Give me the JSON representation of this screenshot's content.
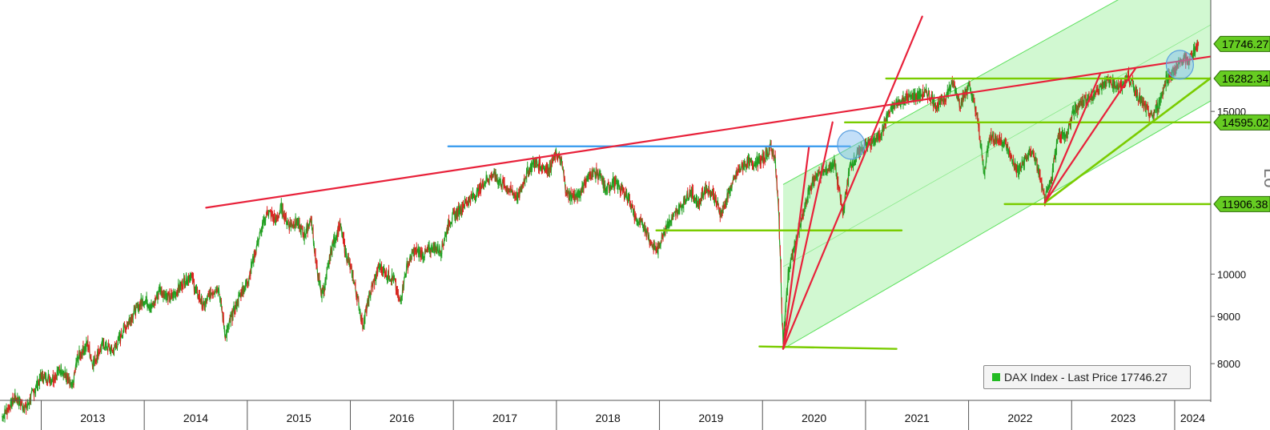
{
  "chart_data": {
    "type": "line",
    "title": "",
    "scale_label": "Lo",
    "y_scale": "log",
    "ylim": [
      7300,
      19800
    ],
    "xlim": [
      2012.6,
      2024.35
    ],
    "y_ticks": [
      {
        "value": 8000,
        "label": "8000"
      },
      {
        "value": 9000,
        "label": "9000"
      },
      {
        "value": 10000,
        "label": "10000"
      },
      {
        "value": 15000,
        "label": "15000"
      }
    ],
    "x_ticks": [
      {
        "year": 2013,
        "label": "2013"
      },
      {
        "year": 2014,
        "label": "2014"
      },
      {
        "year": 2015,
        "label": "2015"
      },
      {
        "year": 2016,
        "label": "2016"
      },
      {
        "year": 2017,
        "label": "2017"
      },
      {
        "year": 2018,
        "label": "2018"
      },
      {
        "year": 2019,
        "label": "2019"
      },
      {
        "year": 2020,
        "label": "2020"
      },
      {
        "year": 2021,
        "label": "2021"
      },
      {
        "year": 2022,
        "label": "2022"
      },
      {
        "year": 2023,
        "label": "2023"
      },
      {
        "year": 2024,
        "label": "2024"
      }
    ],
    "series": [
      {
        "name": "DAX Index - Last Price",
        "color_up": "#22a022",
        "color_down": "#e02020",
        "points": [
          [
            2012.62,
            7000
          ],
          [
            2012.75,
            7350
          ],
          [
            2012.85,
            7150
          ],
          [
            2013.0,
            7750
          ],
          [
            2013.1,
            7700
          ],
          [
            2013.2,
            7900
          ],
          [
            2013.3,
            7500
          ],
          [
            2013.35,
            8100
          ],
          [
            2013.45,
            8400
          ],
          [
            2013.5,
            8000
          ],
          [
            2013.6,
            8400
          ],
          [
            2013.7,
            8250
          ],
          [
            2013.8,
            8700
          ],
          [
            2013.9,
            9100
          ],
          [
            2014.0,
            9400
          ],
          [
            2014.08,
            9200
          ],
          [
            2014.15,
            9650
          ],
          [
            2014.25,
            9400
          ],
          [
            2014.35,
            9700
          ],
          [
            2014.45,
            10000
          ],
          [
            2014.5,
            9600
          ],
          [
            2014.58,
            9200
          ],
          [
            2014.63,
            9500
          ],
          [
            2014.72,
            9700
          ],
          [
            2014.79,
            8550
          ],
          [
            2014.85,
            9000
          ],
          [
            2014.95,
            9600
          ],
          [
            2015.0,
            9800
          ],
          [
            2015.05,
            10300
          ],
          [
            2015.12,
            11000
          ],
          [
            2015.2,
            11700
          ],
          [
            2015.28,
            11400
          ],
          [
            2015.33,
            11800
          ],
          [
            2015.4,
            11300
          ],
          [
            2015.48,
            11400
          ],
          [
            2015.55,
            11000
          ],
          [
            2015.62,
            11500
          ],
          [
            2015.67,
            10200
          ],
          [
            2015.72,
            9500
          ],
          [
            2015.76,
            9800
          ],
          [
            2015.82,
            10700
          ],
          [
            2015.9,
            11300
          ],
          [
            2015.96,
            10500
          ],
          [
            2016.02,
            10000
          ],
          [
            2016.08,
            9300
          ],
          [
            2016.12,
            8800
          ],
          [
            2016.2,
            9600
          ],
          [
            2016.28,
            10200
          ],
          [
            2016.35,
            10000
          ],
          [
            2016.42,
            9900
          ],
          [
            2016.48,
            9300
          ],
          [
            2016.55,
            10200
          ],
          [
            2016.62,
            10600
          ],
          [
            2016.72,
            10500
          ],
          [
            2016.8,
            10700
          ],
          [
            2016.88,
            10600
          ],
          [
            2016.96,
            11400
          ],
          [
            2017.05,
            11700
          ],
          [
            2017.13,
            12000
          ],
          [
            2017.22,
            12200
          ],
          [
            2017.3,
            12600
          ],
          [
            2017.38,
            12800
          ],
          [
            2017.45,
            12600
          ],
          [
            2017.55,
            12300
          ],
          [
            2017.63,
            12100
          ],
          [
            2017.7,
            12800
          ],
          [
            2017.78,
            13200
          ],
          [
            2017.85,
            13100
          ],
          [
            2017.93,
            13000
          ],
          [
            2018.0,
            13500
          ],
          [
            2018.05,
            13200
          ],
          [
            2018.1,
            12200
          ],
          [
            2018.2,
            12100
          ],
          [
            2018.28,
            12600
          ],
          [
            2018.35,
            12900
          ],
          [
            2018.42,
            12800
          ],
          [
            2018.48,
            12300
          ],
          [
            2018.55,
            12600
          ],
          [
            2018.62,
            12400
          ],
          [
            2018.7,
            12100
          ],
          [
            2018.78,
            11400
          ],
          [
            2018.85,
            11300
          ],
          [
            2018.92,
            10800
          ],
          [
            2018.98,
            10600
          ],
          [
            2019.05,
            11200
          ],
          [
            2019.13,
            11500
          ],
          [
            2019.22,
            11900
          ],
          [
            2019.3,
            12300
          ],
          [
            2019.38,
            11900
          ],
          [
            2019.45,
            12400
          ],
          [
            2019.52,
            12200
          ],
          [
            2019.6,
            11600
          ],
          [
            2019.68,
            12300
          ],
          [
            2019.76,
            12900
          ],
          [
            2019.84,
            13200
          ],
          [
            2019.92,
            13200
          ],
          [
            2020.0,
            13300
          ],
          [
            2020.08,
            13700
          ],
          [
            2020.12,
            13400
          ],
          [
            2020.16,
            11500
          ],
          [
            2020.2,
            8400
          ],
          [
            2020.25,
            10000
          ],
          [
            2020.3,
            10600
          ],
          [
            2020.38,
            11400
          ],
          [
            2020.45,
            12300
          ],
          [
            2020.52,
            12800
          ],
          [
            2020.6,
            12900
          ],
          [
            2020.7,
            13200
          ],
          [
            2020.78,
            11600
          ],
          [
            2020.85,
            13100
          ],
          [
            2020.93,
            13500
          ],
          [
            2021.0,
            13800
          ],
          [
            2021.08,
            13900
          ],
          [
            2021.15,
            14200
          ],
          [
            2021.22,
            14900
          ],
          [
            2021.3,
            15300
          ],
          [
            2021.4,
            15500
          ],
          [
            2021.5,
            15600
          ],
          [
            2021.6,
            15700
          ],
          [
            2021.7,
            15200
          ],
          [
            2021.78,
            15600
          ],
          [
            2021.85,
            16100
          ],
          [
            2021.92,
            15300
          ],
          [
            2022.0,
            16000
          ],
          [
            2022.05,
            15400
          ],
          [
            2022.1,
            14400
          ],
          [
            2022.15,
            12800
          ],
          [
            2022.2,
            14100
          ],
          [
            2022.28,
            14000
          ],
          [
            2022.35,
            13900
          ],
          [
            2022.42,
            13300
          ],
          [
            2022.48,
            12900
          ],
          [
            2022.55,
            13300
          ],
          [
            2022.62,
            13600
          ],
          [
            2022.68,
            12900
          ],
          [
            2022.74,
            12000
          ],
          [
            2022.8,
            12600
          ],
          [
            2022.87,
            14200
          ],
          [
            2022.95,
            14100
          ],
          [
            2023.02,
            15000
          ],
          [
            2023.1,
            15400
          ],
          [
            2023.18,
            15500
          ],
          [
            2023.25,
            15800
          ],
          [
            2023.32,
            16200
          ],
          [
            2023.4,
            16100
          ],
          [
            2023.48,
            15900
          ],
          [
            2023.55,
            16400
          ],
          [
            2023.62,
            15800
          ],
          [
            2023.7,
            15200
          ],
          [
            2023.78,
            14800
          ],
          [
            2023.85,
            15300
          ],
          [
            2023.92,
            16300
          ],
          [
            2024.0,
            16600
          ],
          [
            2024.08,
            17100
          ],
          [
            2024.13,
            17000
          ],
          [
            2024.18,
            17400
          ],
          [
            2024.23,
            17746.27
          ]
        ]
      }
    ],
    "price_tags": [
      {
        "value": 17746.27,
        "label": "17746.27"
      },
      {
        "value": 16282.34,
        "label": "16282.34"
      },
      {
        "value": 14595.02,
        "label": "14595.02"
      },
      {
        "value": 11906.38,
        "label": "11906.38"
      }
    ],
    "annotations": {
      "channel": {
        "lower": [
          [
            2020.2,
            8300
          ],
          [
            2024.35,
            15400
          ]
        ],
        "upper": [
          [
            2020.2,
            12500
          ],
          [
            2024.35,
            22500
          ]
        ],
        "color": "#ccf7cc",
        "edge": "#5ee05e"
      },
      "red_resistance": {
        "from": [
          2014.6,
          11800
        ],
        "to": [
          2024.35,
          17200
        ],
        "color": "#e8213a"
      },
      "blue_line": {
        "from": [
          2016.95,
          13750
        ],
        "to": [
          2020.85,
          13750
        ],
        "color": "#3399ee"
      },
      "red_fans": [
        {
          "from": [
            2020.2,
            8300
          ],
          "to": [
            2020.45,
            13700
          ],
          "color": "#e8213a"
        },
        {
          "from": [
            2020.2,
            8300
          ],
          "to": [
            2020.68,
            14600
          ],
          "color": "#e8213a"
        },
        {
          "from": [
            2020.2,
            8300
          ],
          "to": [
            2021.55,
            19000
          ],
          "color": "#e8213a"
        },
        {
          "from": [
            2022.74,
            11950
          ],
          "to": [
            2023.28,
            16500
          ],
          "color": "#e8213a"
        },
        {
          "from": [
            2022.74,
            11950
          ],
          "to": [
            2023.62,
            16700
          ],
          "color": "#e8213a"
        }
      ],
      "green_horizontals": [
        {
          "from": [
            2018.97,
            11150
          ],
          "to": [
            2021.35,
            11150
          ]
        },
        {
          "from": [
            2019.97,
            8350
          ],
          "to": [
            2021.3,
            8300
          ]
        },
        {
          "from": [
            2020.8,
            14595.02
          ],
          "to": [
            2024.35,
            14595.02
          ]
        },
        {
          "from": [
            2021.2,
            16282.34
          ],
          "to": [
            2024.35,
            16282.34
          ]
        },
        {
          "from": [
            2022.35,
            11906.38
          ],
          "to": [
            2024.35,
            11906.38
          ]
        }
      ],
      "green_trend": {
        "from": [
          2022.74,
          11950
        ],
        "to": [
          2024.35,
          16300
        ],
        "color": "#7acc00"
      },
      "highlight_circles": [
        {
          "x": 2020.86,
          "y": 13800
        },
        {
          "x": 2024.05,
          "y": 16850
        }
      ]
    },
    "legend": {
      "label": "DAX Index - Last Price 17746.27",
      "color": "#22bb22",
      "position": "bottom-right"
    }
  }
}
